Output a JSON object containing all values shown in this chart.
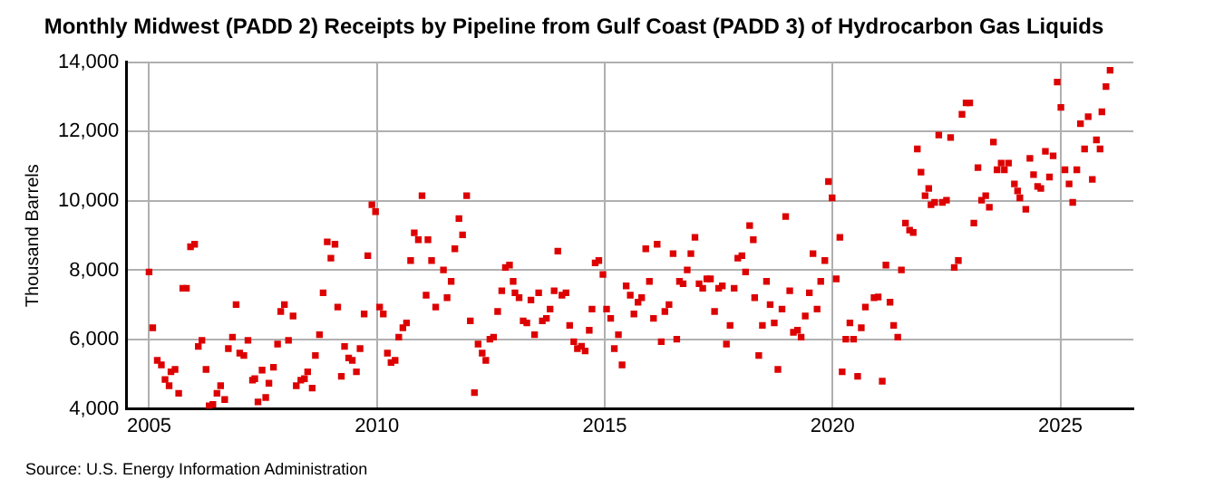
{
  "chart_data": {
    "type": "scatter",
    "title": "Monthly Midwest (PADD 2) Receipts by Pipeline from Gulf Coast (PADD 3) of Hydrocarbon Gas Liquids",
    "ylabel": "Thousand Barrels",
    "annotations": [
      "Source: U.S. Energy Information Administration"
    ],
    "marker": "square",
    "grid": true,
    "legend": false,
    "xlim": [
      2004.5,
      2026.6
    ],
    "xticks": [
      2005,
      2010,
      2015,
      2020,
      2025
    ],
    "ylim": [
      4000,
      14000
    ],
    "yticks": [
      {
        "value": 4000,
        "label": "4,000"
      },
      {
        "value": 6000,
        "label": "6,000"
      },
      {
        "value": 8000,
        "label": "8,000"
      },
      {
        "value": 10000,
        "label": "10,000"
      },
      {
        "value": 12000,
        "label": "12,000"
      },
      {
        "value": 14000,
        "label": "14,000"
      }
    ],
    "series": [
      {
        "color": "#dd0000",
        "x": [
          2005.0,
          2005.08,
          2005.18,
          2005.27,
          2005.35,
          2005.44,
          2005.48,
          2005.57,
          2005.65,
          2005.74,
          2005.82,
          2005.91,
          2006.0,
          2006.08,
          2006.16,
          2006.25,
          2006.32,
          2006.4,
          2006.49,
          2006.57,
          2006.66,
          2006.74,
          2006.83,
          2006.91,
          2006.99,
          2007.08,
          2007.17,
          2007.27,
          2007.32,
          2007.39,
          2007.48,
          2007.56,
          2007.63,
          2007.73,
          2007.82,
          2007.89,
          2007.97,
          2008.06,
          2008.16,
          2008.23,
          2008.33,
          2008.41,
          2008.48,
          2008.58,
          2008.65,
          2008.74,
          2008.82,
          2008.91,
          2008.99,
          2009.08,
          2009.14,
          2009.22,
          2009.29,
          2009.38,
          2009.46,
          2009.55,
          2009.63,
          2009.72,
          2009.8,
          2009.89,
          2009.97,
          2010.06,
          2010.14,
          2010.23,
          2010.31,
          2010.4,
          2010.48,
          2010.57,
          2010.65,
          2010.74,
          2010.82,
          2010.91,
          2010.99,
          2011.08,
          2011.12,
          2011.2,
          2011.29,
          2011.46,
          2011.54,
          2011.63,
          2011.71,
          2011.8,
          2011.88,
          2011.97,
          2012.05,
          2012.14,
          2012.22,
          2012.31,
          2012.39,
          2012.48,
          2012.56,
          2012.65,
          2012.74,
          2012.82,
          2012.91,
          2012.99,
          2013.03,
          2013.12,
          2013.21,
          2013.29,
          2013.38,
          2013.46,
          2013.55,
          2013.63,
          2013.72,
          2013.8,
          2013.89,
          2013.97,
          2014.06,
          2014.15,
          2014.23,
          2014.32,
          2014.4,
          2014.49,
          2014.57,
          2014.66,
          2014.72,
          2014.79,
          2014.87,
          2014.96,
          2015.04,
          2015.13,
          2015.21,
          2015.3,
          2015.38,
          2015.47,
          2015.56,
          2015.64,
          2015.73,
          2015.81,
          2015.9,
          2015.98,
          2016.07,
          2016.15,
          2016.24,
          2016.32,
          2016.41,
          2016.5,
          2016.58,
          2016.64,
          2016.72,
          2016.81,
          2016.89,
          2016.98,
          2017.07,
          2017.15,
          2017.24,
          2017.32,
          2017.41,
          2017.5,
          2017.58,
          2017.67,
          2017.75,
          2017.84,
          2017.92,
          2018.01,
          2018.09,
          2018.18,
          2018.26,
          2018.29,
          2018.38,
          2018.46,
          2018.55,
          2018.63,
          2018.72,
          2018.8,
          2018.89,
          2018.97,
          2019.06,
          2019.14,
          2019.23,
          2019.31,
          2019.4,
          2019.49,
          2019.57,
          2019.66,
          2019.74,
          2019.83,
          2019.91,
          2019.99,
          2020.08,
          2020.16,
          2020.21,
          2020.29,
          2020.38,
          2020.46,
          2020.55,
          2020.63,
          2020.72,
          2020.91,
          2021.0,
          2021.09,
          2021.17,
          2021.26,
          2021.34,
          2021.43,
          2021.51,
          2021.6,
          2021.69,
          2021.77,
          2021.86,
          2021.94,
          2022.03,
          2022.11,
          2022.16,
          2022.24,
          2022.33,
          2022.41,
          2022.5,
          2022.59,
          2022.67,
          2022.76,
          2022.84,
          2022.93,
          2023.01,
          2023.1,
          2023.19,
          2023.27,
          2023.36,
          2023.44,
          2023.53,
          2023.61,
          2023.7,
          2023.77,
          2023.86,
          2023.99,
          2024.06,
          2024.11,
          2024.24,
          2024.33,
          2024.41,
          2024.5,
          2024.57,
          2024.67,
          2024.76,
          2024.84,
          2024.93,
          2025.01,
          2025.1,
          2025.19,
          2025.27,
          2025.36,
          2025.44,
          2025.53,
          2025.61,
          2025.7,
          2025.79,
          2025.87,
          2025.91,
          2026.0,
          2026.09
        ],
        "values": [
          7950,
          6340,
          5400,
          5270,
          4850,
          4670,
          5070,
          5140,
          4450,
          7480,
          7480,
          8680,
          8750,
          5800,
          5980,
          5140,
          4090,
          4130,
          4450,
          4670,
          4270,
          5740,
          6070,
          7010,
          5610,
          5540,
          5980,
          4830,
          4870,
          4200,
          5120,
          4330,
          4740,
          5200,
          5870,
          6810,
          7010,
          5980,
          6680,
          4670,
          4830,
          4870,
          5070,
          4600,
          5540,
          6140,
          7350,
          8820,
          8350,
          8750,
          6940,
          4940,
          5800,
          5470,
          5400,
          5070,
          5740,
          6740,
          8420,
          9890,
          9690,
          6940,
          6740,
          5610,
          5340,
          5400,
          6070,
          6340,
          6480,
          8280,
          9080,
          8880,
          10150,
          7280,
          8880,
          8280,
          6940,
          8010,
          7210,
          7680,
          8620,
          9490,
          9020,
          10150,
          6540,
          4470,
          5870,
          5610,
          5400,
          6010,
          6070,
          6810,
          7410,
          8080,
          8150,
          7680,
          7350,
          7210,
          6540,
          6480,
          7140,
          6140,
          7350,
          6540,
          6610,
          6880,
          7410,
          8550,
          7280,
          7350,
          6410,
          5940,
          5740,
          5810,
          5670,
          6270,
          6880,
          8210,
          8280,
          7880,
          6880,
          6610,
          5740,
          6140,
          5270,
          7550,
          7280,
          6740,
          7080,
          7210,
          8620,
          7680,
          6610,
          8750,
          5940,
          6810,
          7010,
          8480,
          6010,
          7680,
          7610,
          8010,
          8480,
          8950,
          7610,
          7480,
          7750,
          7750,
          6810,
          7480,
          7550,
          5870,
          6410,
          7480,
          8350,
          8420,
          7950,
          9290,
          8880,
          7210,
          5540,
          6410,
          7680,
          7010,
          6480,
          5140,
          6880,
          9550,
          7410,
          6210,
          6270,
          6070,
          6680,
          7350,
          8480,
          6880,
          7680,
          8280,
          10560,
          10090,
          7750,
          8950,
          5070,
          6010,
          6480,
          6010,
          4940,
          6340,
          6940,
          7210,
          7230,
          4800,
          8150,
          7080,
          6410,
          6070,
          8010,
          9360,
          9160,
          9090,
          11500,
          10830,
          10150,
          10360,
          9890,
          9960,
          11900,
          9960,
          10020,
          11830,
          8080,
          8280,
          12500,
          12830,
          12830,
          9360,
          10960,
          10020,
          10150,
          9820,
          11700,
          10900,
          11090,
          10900,
          11090,
          10490,
          10290,
          10090,
          9760,
          11230,
          10760,
          10420,
          10360,
          11430,
          10690,
          11300,
          13430,
          12700,
          10900,
          10490,
          9960,
          10900,
          12230,
          11500,
          12430,
          10620,
          11760,
          11500,
          12570,
          13300,
          13770
        ]
      }
    ]
  }
}
